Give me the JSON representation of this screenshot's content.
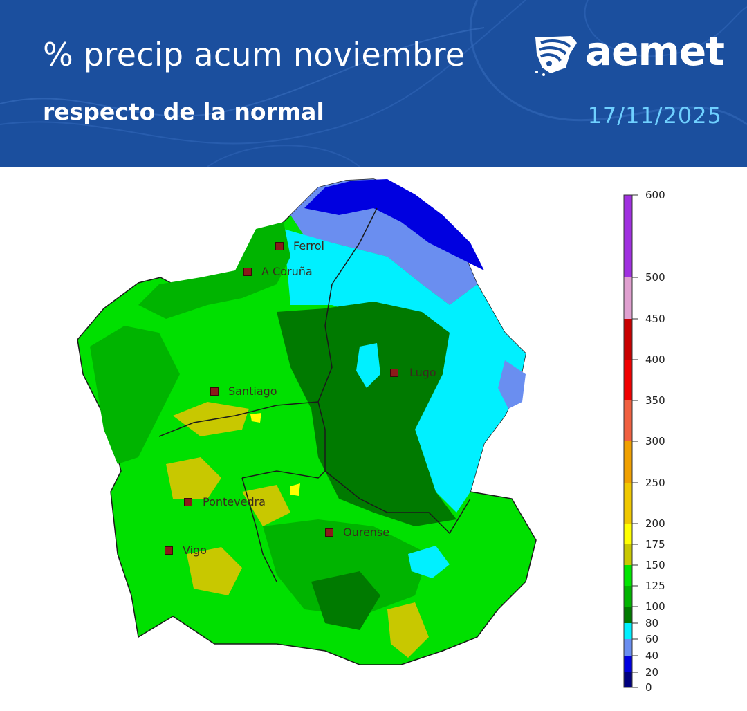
{
  "header": {
    "title": "% precip acum noviembre",
    "subtitle": "respecto de la normal",
    "date": "17/11/2025",
    "logo_text": "aemet",
    "background": "#1b4f9e",
    "date_color": "#6fd0ff"
  },
  "cities": [
    {
      "name": "Ferrol"
    },
    {
      "name": "A Coruña"
    },
    {
      "name": "Lugo"
    },
    {
      "name": "Santiago"
    },
    {
      "name": "Pontevedra"
    },
    {
      "name": "Ourense"
    },
    {
      "name": "Vigo"
    }
  ],
  "legend": {
    "bins": [
      {
        "from": 0,
        "to": 20,
        "color": "#00007f"
      },
      {
        "from": 20,
        "to": 40,
        "color": "#0000e0"
      },
      {
        "from": 40,
        "to": 60,
        "color": "#6a8ef0"
      },
      {
        "from": 60,
        "to": 80,
        "color": "#00f0ff"
      },
      {
        "from": 80,
        "to": 100,
        "color": "#007a00"
      },
      {
        "from": 100,
        "to": 125,
        "color": "#00b400"
      },
      {
        "from": 125,
        "to": 150,
        "color": "#00e600"
      },
      {
        "from": 150,
        "to": 175,
        "color": "#c8c800"
      },
      {
        "from": 175,
        "to": 200,
        "color": "#ffff00"
      },
      {
        "from": 200,
        "to": 250,
        "color": "#f0c800"
      },
      {
        "from": 250,
        "to": 300,
        "color": "#f0a000"
      },
      {
        "from": 300,
        "to": 350,
        "color": "#f06040"
      },
      {
        "from": 350,
        "to": 400,
        "color": "#f00000"
      },
      {
        "from": 400,
        "to": 450,
        "color": "#c80000"
      },
      {
        "from": 450,
        "to": 500,
        "color": "#e0a0d0"
      },
      {
        "from": 500,
        "to": 600,
        "color": "#a030e0"
      }
    ],
    "ticks": [
      "0",
      "20",
      "40",
      "60",
      "80",
      "100",
      "125",
      "150",
      "175",
      "200",
      "250",
      "300",
      "350",
      "400",
      "450",
      "500",
      "600"
    ]
  }
}
